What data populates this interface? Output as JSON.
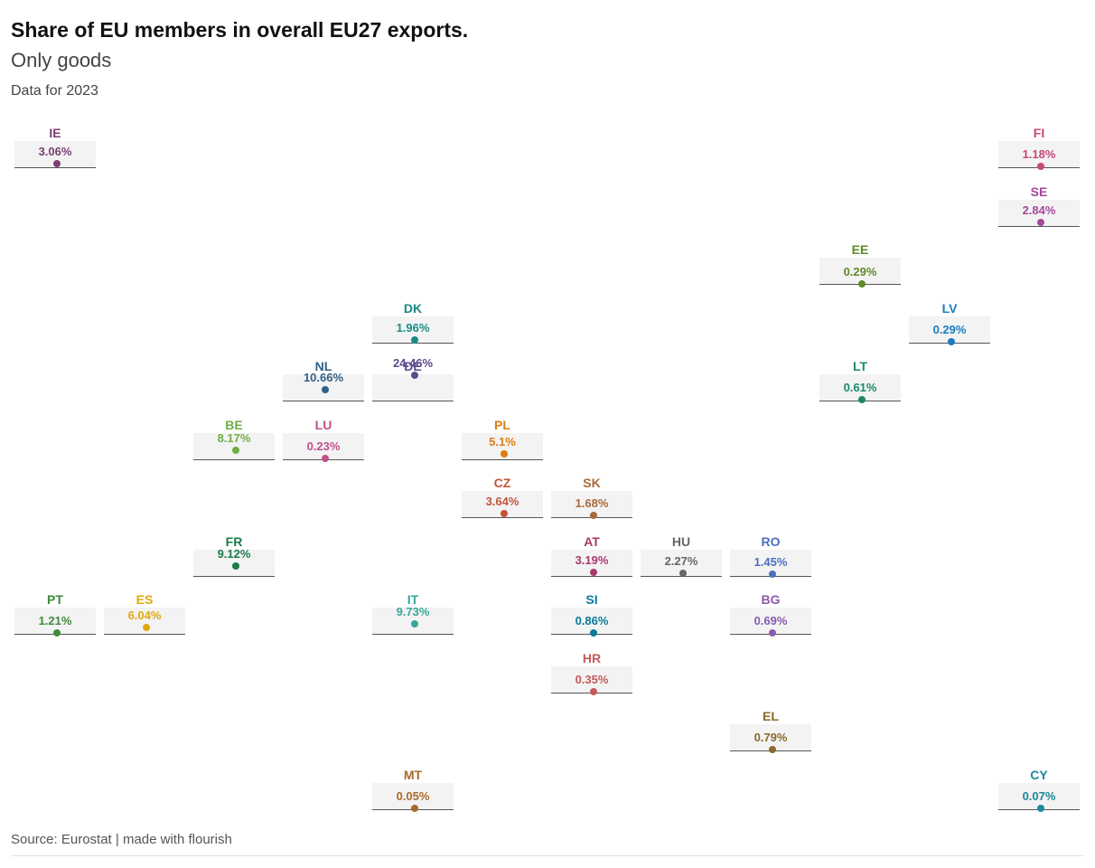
{
  "title": "Share of EU members in overall EU27 exports.",
  "subtitle": "Only goods",
  "note": "Data for 2023",
  "source": "Source: Eurostat | made with flourish",
  "chart_data": {
    "type": "tile-grid-map",
    "unit": "%",
    "value_min": 0,
    "value_max": 25,
    "countries": [
      {
        "code": "IE",
        "value": 3.06,
        "label": "3.06%",
        "col": 0,
        "row": 0,
        "color": "#7b3f72"
      },
      {
        "code": "FI",
        "value": 1.18,
        "label": "1.18%",
        "col": 11,
        "row": 0,
        "color": "#c4487a"
      },
      {
        "code": "SE",
        "value": 2.84,
        "label": "2.84%",
        "col": 11,
        "row": 1,
        "color": "#a8479b"
      },
      {
        "code": "EE",
        "value": 0.29,
        "label": "0.29%",
        "col": 9,
        "row": 2,
        "color": "#5e8a2a"
      },
      {
        "code": "DK",
        "value": 1.96,
        "label": "1.96%",
        "col": 4,
        "row": 3,
        "color": "#1a8a85"
      },
      {
        "code": "LV",
        "value": 0.29,
        "label": "0.29%",
        "col": 10,
        "row": 3,
        "color": "#1b7cbf"
      },
      {
        "code": "NL",
        "value": 10.66,
        "label": "10.66%",
        "col": 3,
        "row": 4,
        "color": "#2f5f8a"
      },
      {
        "code": "DE",
        "value": 24.46,
        "label": "24.46%",
        "col": 4,
        "row": 4,
        "color": "#5a4a8c"
      },
      {
        "code": "LT",
        "value": 0.61,
        "label": "0.61%",
        "col": 9,
        "row": 4,
        "color": "#1a8a6a"
      },
      {
        "code": "BE",
        "value": 8.17,
        "label": "8.17%",
        "col": 2,
        "row": 5,
        "color": "#6fae45"
      },
      {
        "code": "LU",
        "value": 0.23,
        "label": "0.23%",
        "col": 3,
        "row": 5,
        "color": "#c0508a"
      },
      {
        "code": "PL",
        "value": 5.1,
        "label": "5.1%",
        "col": 5,
        "row": 5,
        "color": "#e07b12"
      },
      {
        "code": "CZ",
        "value": 3.64,
        "label": "3.64%",
        "col": 5,
        "row": 6,
        "color": "#c4543a"
      },
      {
        "code": "SK",
        "value": 1.68,
        "label": "1.68%",
        "col": 6,
        "row": 6,
        "color": "#a86a3a"
      },
      {
        "code": "FR",
        "value": 9.12,
        "label": "9.12%",
        "col": 2,
        "row": 7,
        "color": "#1d7a4a"
      },
      {
        "code": "AT",
        "value": 3.19,
        "label": "3.19%",
        "col": 6,
        "row": 7,
        "color": "#a83a6a"
      },
      {
        "code": "HU",
        "value": 2.27,
        "label": "2.27%",
        "col": 7,
        "row": 7,
        "color": "#666666"
      },
      {
        "code": "RO",
        "value": 1.45,
        "label": "1.45%",
        "col": 8,
        "row": 7,
        "color": "#4a6fc0"
      },
      {
        "code": "PT",
        "value": 1.21,
        "label": "1.21%",
        "col": 0,
        "row": 8,
        "color": "#3f8a3a"
      },
      {
        "code": "ES",
        "value": 6.04,
        "label": "6.04%",
        "col": 1,
        "row": 8,
        "color": "#e0a810"
      },
      {
        "code": "IT",
        "value": 9.73,
        "label": "9.73%",
        "col": 4,
        "row": 8,
        "color": "#3aa69a"
      },
      {
        "code": "SI",
        "value": 0.86,
        "label": "0.86%",
        "col": 6,
        "row": 8,
        "color": "#0a7a9a"
      },
      {
        "code": "BG",
        "value": 0.69,
        "label": "0.69%",
        "col": 8,
        "row": 8,
        "color": "#8a5ab0"
      },
      {
        "code": "HR",
        "value": 0.35,
        "label": "0.35%",
        "col": 6,
        "row": 9,
        "color": "#c45a5a"
      },
      {
        "code": "EL",
        "value": 0.79,
        "label": "0.79%",
        "col": 8,
        "row": 10,
        "color": "#8a6a2a"
      },
      {
        "code": "MT",
        "value": 0.05,
        "label": "0.05%",
        "col": 4,
        "row": 11,
        "color": "#a86a2a"
      },
      {
        "code": "CY",
        "value": 0.07,
        "label": "0.07%",
        "col": 11,
        "row": 11,
        "color": "#1a8a9a"
      }
    ]
  }
}
